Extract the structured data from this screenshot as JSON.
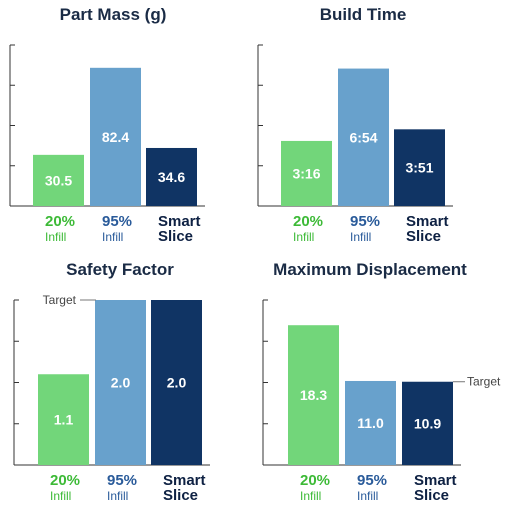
{
  "colors": {
    "infill20": "#72d67a",
    "infill95": "#68a1cc",
    "smart": "#103464",
    "axis": "#333333"
  },
  "chart_data": [
    {
      "type": "bar",
      "title": "Part Mass (g)",
      "categories": [
        {
          "line1": "20%",
          "line2": "Infill",
          "color": "#3dba37"
        },
        {
          "line1": "95%",
          "line2": "Infill",
          "color": "#2a5b9a"
        },
        {
          "line1": "Smart",
          "line2": "Slice",
          "color": "#0e2143"
        }
      ],
      "values": [
        30.5,
        82.4,
        34.6
      ],
      "labels": [
        "30.5",
        "82.4",
        "34.6"
      ],
      "ylim": [
        0,
        96
      ],
      "target": null
    },
    {
      "type": "bar",
      "title": "Build Time",
      "categories": [
        {
          "line1": "20%",
          "line2": "Infill",
          "color": "#3dba37"
        },
        {
          "line1": "95%",
          "line2": "Infill",
          "color": "#2a5b9a"
        },
        {
          "line1": "Smart",
          "line2": "Slice",
          "color": "#0e2143"
        }
      ],
      "values": [
        196,
        414,
        231
      ],
      "labels": [
        "3:16",
        "6:54",
        "3:51"
      ],
      "ylim": [
        0,
        485
      ],
      "target": null
    },
    {
      "type": "bar",
      "title": "Safety Factor",
      "categories": [
        {
          "line1": "20%",
          "line2": "Infill",
          "color": "#3dba37"
        },
        {
          "line1": "95%",
          "line2": "Infill",
          "color": "#2a5b9a"
        },
        {
          "line1": "Smart",
          "line2": "Slice",
          "color": "#0e2143"
        }
      ],
      "values": [
        1.1,
        2.0,
        2.0
      ],
      "labels": [
        "1.1",
        "2.0",
        "2.0"
      ],
      "ylim": [
        0,
        2.0
      ],
      "target": {
        "value": 2.0,
        "label": "Target",
        "side": "left"
      }
    },
    {
      "type": "bar",
      "title": "Maximum Displacement",
      "categories": [
        {
          "line1": "20%",
          "line2": "Infill",
          "color": "#3dba37"
        },
        {
          "line1": "95%",
          "line2": "Infill",
          "color": "#2a5b9a"
        },
        {
          "line1": "Smart",
          "line2": "Slice",
          "color": "#0e2143"
        }
      ],
      "values": [
        18.3,
        11.0,
        10.9
      ],
      "labels": [
        "18.3",
        "11.0",
        "10.9"
      ],
      "ylim": [
        0,
        21.6
      ],
      "target": {
        "value": 10.9,
        "label": "Target",
        "side": "right"
      }
    }
  ]
}
